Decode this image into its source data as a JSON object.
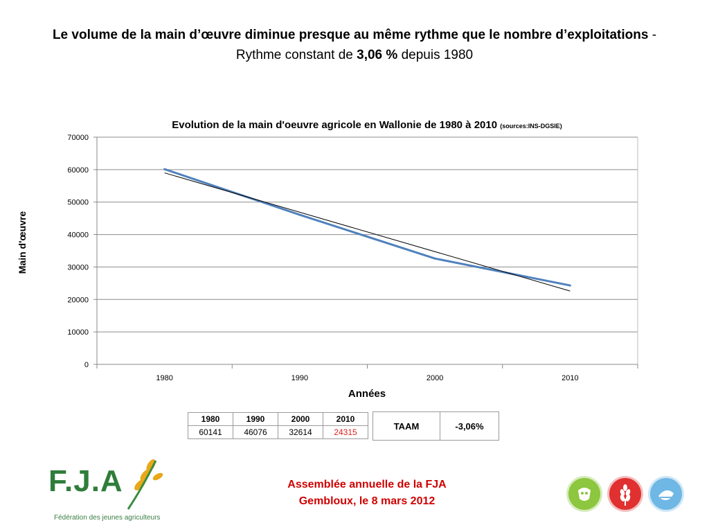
{
  "slide": {
    "title_bold_1": "Le volume de la main d’œuvre diminue presque au même rythme que le nombre d’exploitations",
    "title_plain_1": " - Rythme constant de ",
    "title_bold_2": "3,06 %",
    "title_plain_2": " depuis 1980"
  },
  "chart_data": {
    "type": "line",
    "title": "Evolution de la main d'oeuvre agricole en Wallonie de 1980 à 2010",
    "source_note": "(sources:INS-DGSIE)",
    "xlabel": "Années",
    "ylabel": "Main d'œuvre",
    "categories": [
      "1980",
      "1990",
      "2000",
      "2010"
    ],
    "series": [
      {
        "values": [
          60141,
          46076,
          32614,
          24315
        ],
        "color": "#4f81bd"
      }
    ],
    "trendline": {
      "start": 59000,
      "end": 22600,
      "color": "#000000"
    },
    "ylim": [
      0,
      70000
    ],
    "yticks": [
      "0",
      "10000",
      "20000",
      "30000",
      "40000",
      "50000",
      "60000",
      "70000"
    ],
    "grid": true,
    "legend": "none"
  },
  "data_table": {
    "years": [
      "1980",
      "1990",
      "2000",
      "2010"
    ],
    "values": [
      "60141",
      "46076",
      "32614",
      "24315"
    ],
    "highlight_color": "#e02020"
  },
  "taam_table": {
    "label": "TAAM",
    "value": "-3,06%"
  },
  "footer": {
    "line1": "Assemblée annuelle de la FJA",
    "line2": "Gembloux, le 8 mars 2012"
  },
  "logo": {
    "text": "F.J.A",
    "subtitle": "Fédération des jeunes agriculteurs"
  },
  "badges": [
    {
      "icon": "cow-icon",
      "color": "#8dc63f"
    },
    {
      "icon": "wheat-icon",
      "color": "#e03030"
    },
    {
      "icon": "dairy-icon",
      "color": "#6fb7e4"
    }
  ]
}
